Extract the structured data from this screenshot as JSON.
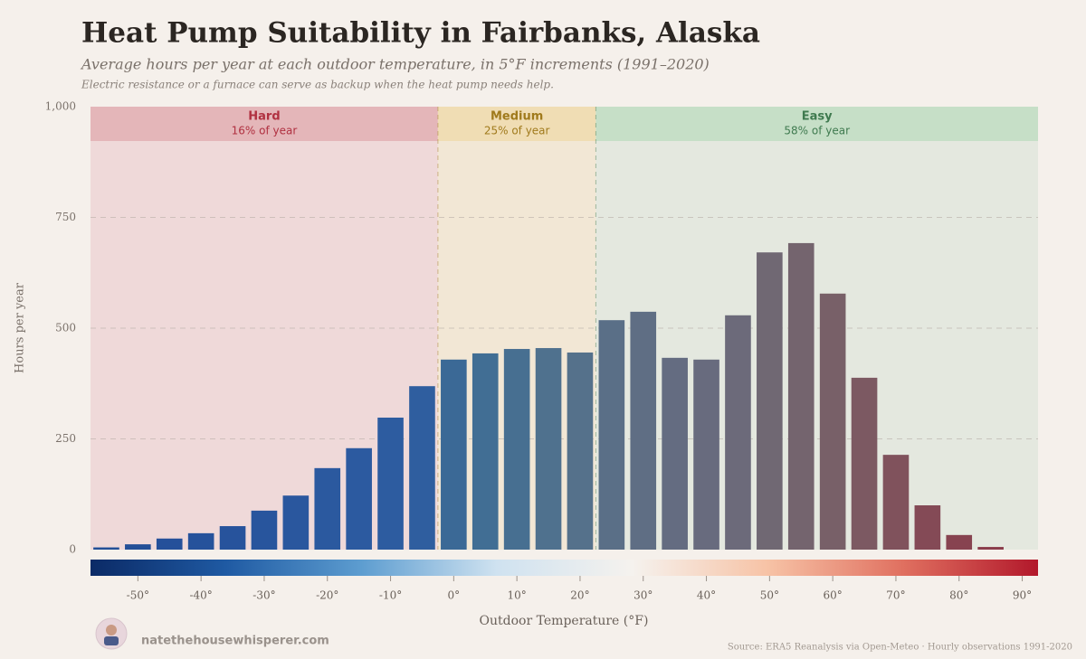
{
  "chart_data": {
    "type": "bar",
    "title": "Heat Pump Suitability in Fairbanks, Alaska",
    "subtitle": "Average hours per year at each outdoor temperature, in 5°F increments (1991–2020)",
    "note": "Electric resistance or a furnace can serve as backup when the heat pump needs help.",
    "ylabel": "Hours per year",
    "xlabel": "Outdoor Temperature (°F)",
    "source": "Source: ERA5 Reanalysis via Open-Meteo · Hourly observations 1991-2020",
    "website": "natethehousewhisperer.com",
    "x": [
      -55,
      -50,
      -45,
      -40,
      -35,
      -30,
      -25,
      -20,
      -15,
      -10,
      -5,
      0,
      5,
      10,
      15,
      20,
      25,
      30,
      35,
      40,
      45,
      50,
      55,
      60,
      65,
      70,
      75,
      80,
      85
    ],
    "values": [
      5,
      12,
      25,
      37,
      53,
      88,
      122,
      184,
      229,
      298,
      369,
      429,
      443,
      453,
      455,
      445,
      518,
      537,
      433,
      429,
      529,
      671,
      692,
      578,
      388,
      214,
      100,
      33,
      6
    ],
    "colors": [
      "#234f97",
      "#244f97",
      "#25509a",
      "#26529b",
      "#27539c",
      "#28559d",
      "#2a579e",
      "#2b599f",
      "#2c5aa0",
      "#2d5ca0",
      "#2f5e9f",
      "#3b6996",
      "#416e94",
      "#476f91",
      "#4f718e",
      "#55718b",
      "#5a6f87",
      "#5f6e84",
      "#646c81",
      "#686b7e",
      "#6c6a7a",
      "#706873",
      "#74646e",
      "#786068",
      "#7c5962",
      "#80525c",
      "#844a56",
      "#874350",
      "#8a3d4b"
    ],
    "bar_width": 5,
    "xlim": [
      -57.5,
      92.5
    ],
    "ylim": [
      0,
      1000
    ],
    "xticks": [
      {
        "value": -50,
        "label": "-50°"
      },
      {
        "value": -40,
        "label": "-40°"
      },
      {
        "value": -30,
        "label": "-30°"
      },
      {
        "value": -20,
        "label": "-20°"
      },
      {
        "value": -10,
        "label": "-10°"
      },
      {
        "value": 0,
        "label": "0°"
      },
      {
        "value": 10,
        "label": "10°"
      },
      {
        "value": 20,
        "label": "20°"
      },
      {
        "value": 30,
        "label": "30°"
      },
      {
        "value": 40,
        "label": "40°"
      },
      {
        "value": 50,
        "label": "50°"
      },
      {
        "value": 60,
        "label": "60°"
      },
      {
        "value": 70,
        "label": "70°"
      },
      {
        "value": 80,
        "label": "80°"
      },
      {
        "value": 90,
        "label": "90°"
      }
    ],
    "yticks": [
      0,
      250,
      500,
      750,
      {
        "value": 1000,
        "label": "1,000"
      }
    ],
    "grid": true,
    "zones": [
      {
        "name": "Hard",
        "label": "16% of year",
        "start": -57.5,
        "end": -2.5,
        "fill": "#efd9d9",
        "header": "#e4b6b9",
        "text_color": "#b03040"
      },
      {
        "name": "Medium",
        "label": "25% of year",
        "start": -2.5,
        "end": 22.5,
        "fill": "#f2e7d5",
        "header": "#f0ddb4",
        "text_color": "#a07a1c"
      },
      {
        "name": "Easy",
        "label": "58% of year",
        "start": 22.5,
        "end": 92.5,
        "fill": "#e4e8df",
        "header": "#c6dfc7",
        "text_color": "#3f7a4f"
      }
    ],
    "colorbar": [
      "#0b2a66",
      "#1f5aa3",
      "#5d9dd0",
      "#cfe2f0",
      "#f5f2ee",
      "#f7c3a6",
      "#e07060",
      "#b2182b"
    ]
  }
}
